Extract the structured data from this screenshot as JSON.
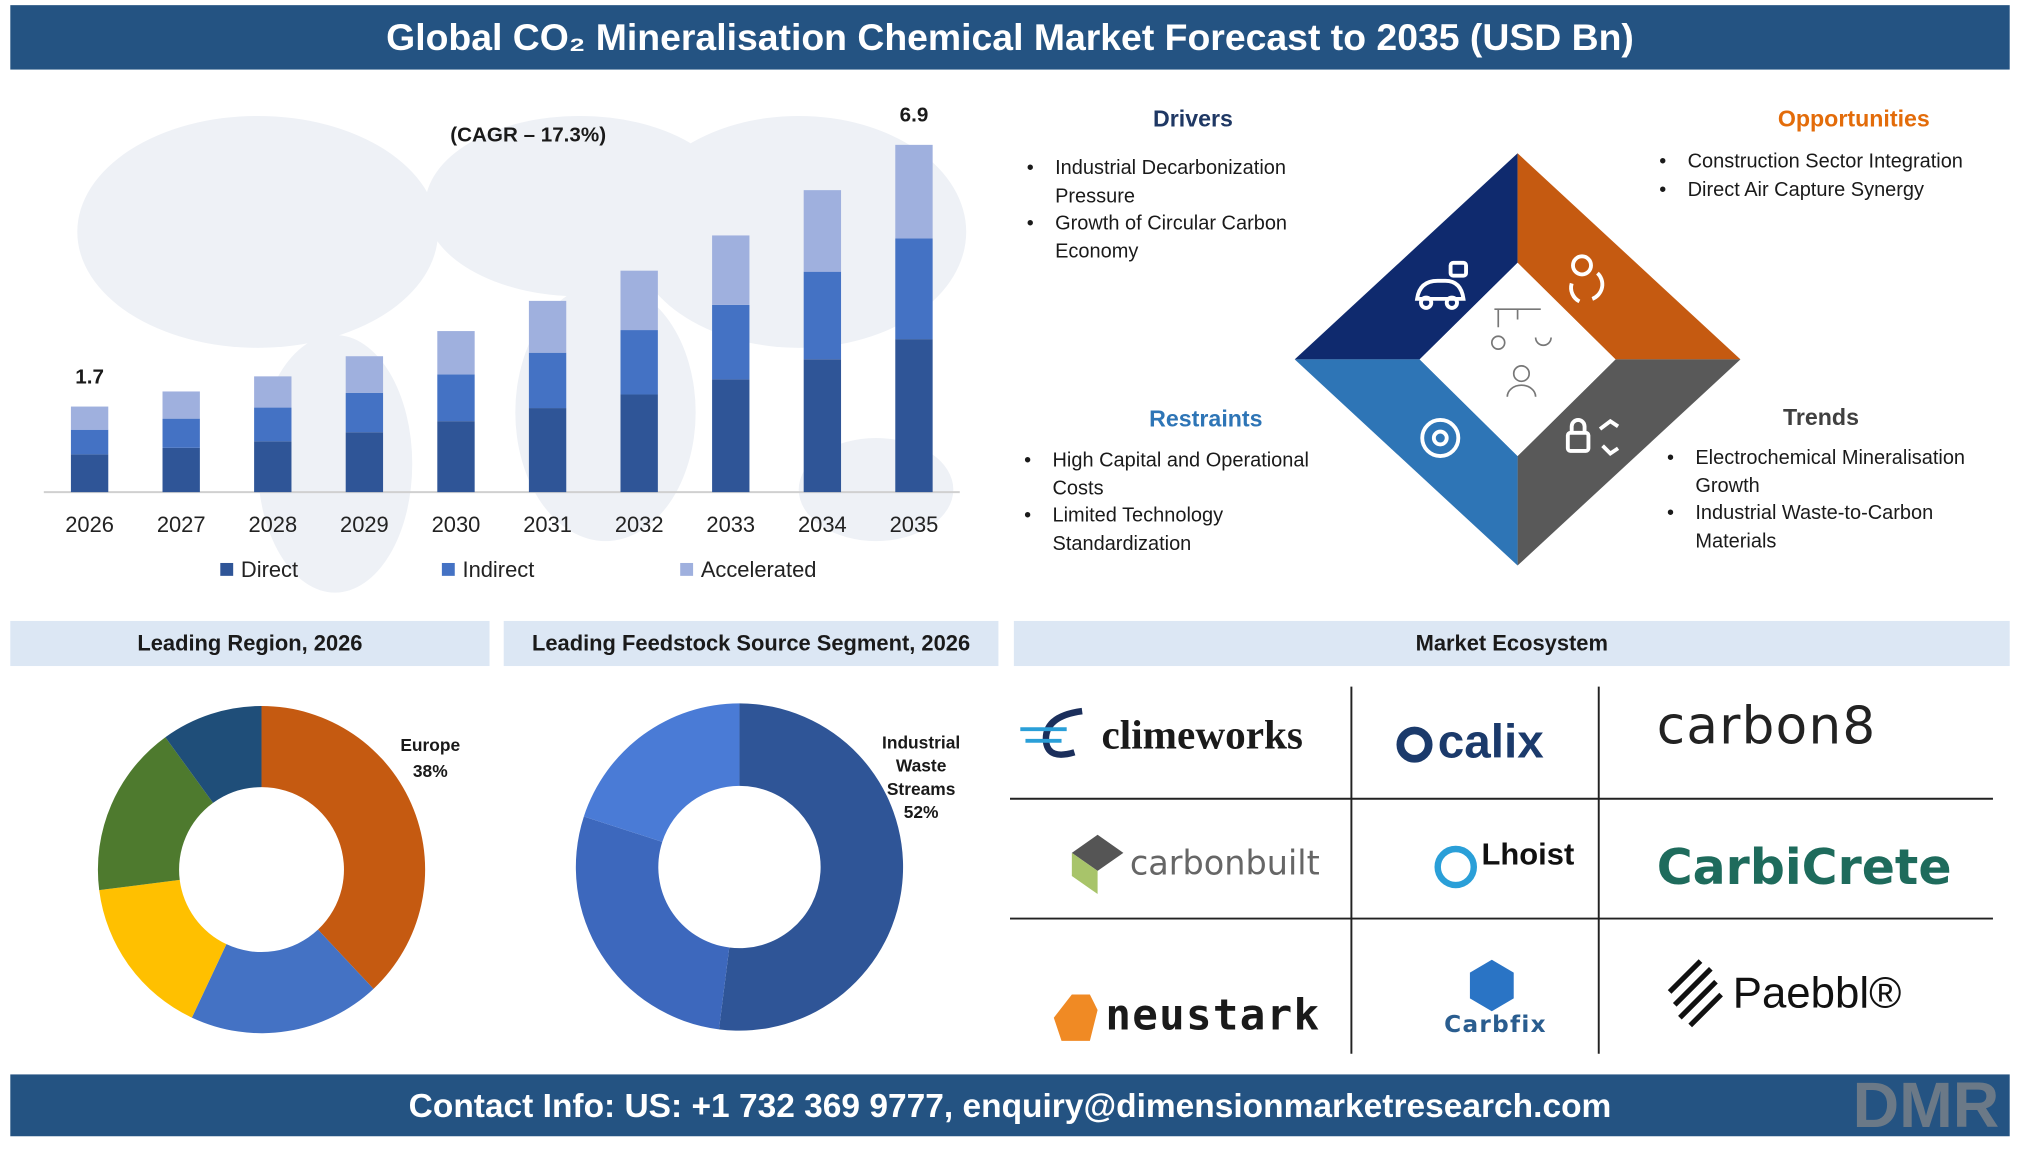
{
  "header": {
    "title": "Global CO₂ Mineralisation Chemical Market Forecast to 2035 (USD Bn)"
  },
  "chart_data": [
    {
      "type": "bar",
      "stacked": true,
      "annotation": "(CAGR – 17.3%)",
      "categories": [
        "2026",
        "2027",
        "2028",
        "2029",
        "2030",
        "2031",
        "2032",
        "2033",
        "2034",
        "2035"
      ],
      "series": [
        {
          "name": "Direct",
          "color": "#2f5597",
          "values": [
            0.75,
            0.88,
            1.01,
            1.19,
            1.41,
            1.67,
            1.94,
            2.24,
            2.64,
            3.04
          ]
        },
        {
          "name": "Indirect",
          "color": "#4472c4",
          "values": [
            0.49,
            0.58,
            0.67,
            0.78,
            0.93,
            1.1,
            1.28,
            1.48,
            1.74,
            2.0
          ]
        },
        {
          "name": "Accelerated",
          "color": "#9fb0de",
          "values": [
            0.46,
            0.54,
            0.62,
            0.73,
            0.86,
            1.03,
            1.18,
            1.38,
            1.62,
            1.86
          ]
        }
      ],
      "totals": [
        1.7,
        null,
        null,
        null,
        null,
        null,
        null,
        null,
        null,
        6.9
      ],
      "ylim": [
        0,
        7.5
      ],
      "legend": "bottom"
    },
    {
      "type": "pie",
      "hole": true,
      "title": "Leading Region, 2026",
      "categories": [
        "Europe",
        null,
        null,
        null,
        null
      ],
      "values": [
        38,
        19,
        16,
        17,
        10
      ],
      "value_labels": [
        "38%",
        null,
        null,
        null,
        null
      ],
      "colors": [
        "#c55a11",
        "#4472c4",
        "#ffc000",
        "#4e7a2e",
        "#1f4e79"
      ]
    },
    {
      "type": "pie",
      "hole": true,
      "title": "Leading Feedstock Source Segment, 2026",
      "categories": [
        "Industrial Waste Streams",
        null,
        null
      ],
      "values": [
        52,
        28,
        20
      ],
      "value_labels": [
        "52%",
        null,
        null
      ],
      "colors": [
        "#2f5597",
        "#3d68bd",
        "#4a7bd6"
      ]
    }
  ],
  "drivers": {
    "title": "Drivers",
    "items": [
      "Industrial Decarbonization Pressure",
      "Growth of Circular Carbon Economy"
    ]
  },
  "opportunities": {
    "title": "Opportunities",
    "items": [
      "Construction Sector Integration",
      "Direct Air Capture Synergy"
    ]
  },
  "restraints": {
    "title": "Restraints",
    "items": [
      "High Capital and Operational Costs",
      "Limited Technology Standardization"
    ]
  },
  "trends": {
    "title": "Trends",
    "items": [
      "Electrochemical Mineralisation Growth",
      "Industrial Waste-to-Carbon Materials"
    ]
  },
  "ecosystem": {
    "title": "Market Ecosystem",
    "companies": [
      "climeworks",
      "calix",
      "carbon8",
      "carbonbuilt",
      "Lhoist",
      "CarbiCrete",
      "neustark",
      "Carbfix",
      "Paebbl®"
    ]
  },
  "footer": {
    "contact": "Contact Info: US: +1 732 369 9777, enquiry@dimensionmarketresearch.com"
  },
  "logo": "DMR"
}
